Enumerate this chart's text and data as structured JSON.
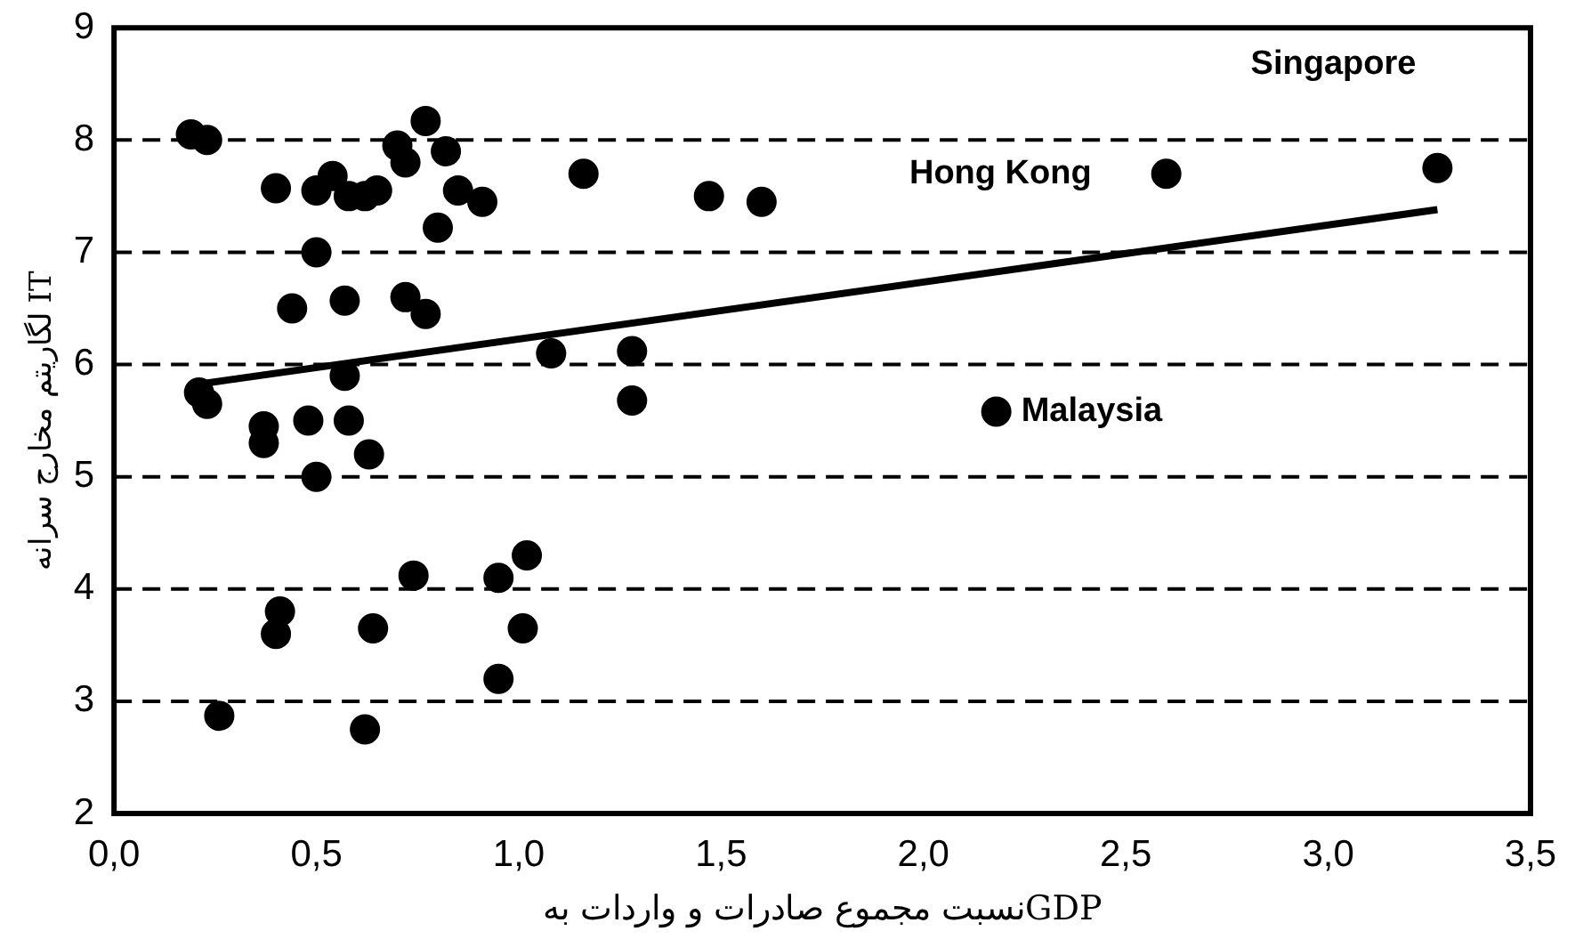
{
  "chart_data": {
    "type": "scatter",
    "xlabel": "نسبت مجموع صادرات و واردات بهGDP",
    "ylabel": "لگاریتم مخارج سرانه IT",
    "xlim": [
      0,
      3.5
    ],
    "ylim": [
      2,
      9
    ],
    "xticks": [
      {
        "value": 0,
        "label": "0,0"
      },
      {
        "value": 0.5,
        "label": "0,5"
      },
      {
        "value": 1,
        "label": "1,0"
      },
      {
        "value": 1.5,
        "label": "1,5"
      },
      {
        "value": 2,
        "label": "2,0"
      },
      {
        "value": 2.5,
        "label": "2,5"
      },
      {
        "value": 3,
        "label": "3,0"
      },
      {
        "value": 3.5,
        "label": "3,5"
      }
    ],
    "yticks": [
      2,
      3,
      4,
      5,
      6,
      7,
      8,
      9
    ],
    "grid": "y",
    "legend": false,
    "series": [
      {
        "marker": "circle",
        "color": "#000000",
        "x": [
          0.19,
          0.23,
          0.4,
          0.5,
          0.54,
          0.58,
          0.62,
          0.65,
          0.7,
          0.72,
          0.77,
          0.82,
          0.85,
          0.8,
          0.91,
          0.5,
          0.44,
          0.57,
          0.72,
          0.77,
          0.21,
          0.23,
          0.57,
          0.37,
          0.37,
          0.48,
          0.58,
          0.63,
          0.5,
          1.16,
          1.47,
          1.6,
          2.6,
          3.27,
          1.08,
          1.28,
          1.28,
          2.18,
          0.74,
          0.95,
          1.02,
          0.41,
          0.4,
          0.64,
          1.01,
          0.95,
          0.26,
          0.62
        ],
        "values": [
          8.05,
          8.0,
          7.57,
          7.55,
          7.68,
          7.5,
          7.5,
          7.55,
          7.95,
          7.8,
          8.17,
          7.9,
          7.55,
          7.22,
          7.45,
          7.0,
          6.5,
          6.57,
          6.6,
          6.45,
          5.75,
          5.65,
          5.9,
          5.45,
          5.3,
          5.5,
          5.5,
          5.2,
          5.0,
          7.7,
          7.5,
          7.45,
          7.7,
          7.75,
          6.1,
          6.12,
          5.68,
          5.58,
          4.12,
          4.1,
          4.3,
          3.8,
          3.6,
          3.65,
          3.65,
          3.2,
          2.87,
          2.75
        ]
      },
      {
        "type": "line",
        "marker": "none",
        "color": "#000000",
        "x": [
          0.2,
          3.27
        ],
        "values": [
          5.82,
          7.38
        ]
      }
    ],
    "annotations": [
      {
        "text": "Singapore",
        "x": 3.27,
        "y": 7.75
      },
      {
        "text": "Hong Kong",
        "x": 2.6,
        "y": 7.7
      },
      {
        "text": "Malaysia",
        "x": 2.18,
        "y": 5.58
      }
    ]
  }
}
